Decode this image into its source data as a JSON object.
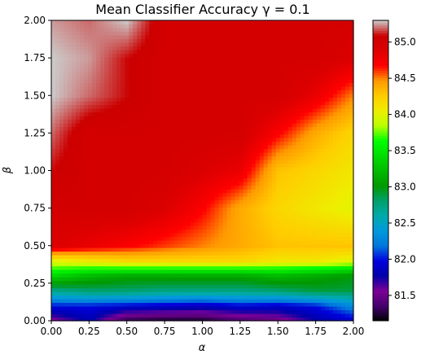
{
  "chart_data": {
    "type": "heatmap",
    "title": "Mean Classifier Accuracy γ = 0.1",
    "xlabel": "α",
    "ylabel": "β",
    "xlim": [
      0.0,
      2.0
    ],
    "ylim": [
      0.0,
      2.0
    ],
    "x_ticks": [
      "0.00",
      "0.25",
      "0.50",
      "0.75",
      "1.00",
      "1.25",
      "1.50",
      "1.75",
      "2.00"
    ],
    "y_ticks": [
      "0.00",
      "0.25",
      "0.50",
      "0.75",
      "1.00",
      "1.25",
      "1.50",
      "1.75",
      "2.00"
    ],
    "colorbar": {
      "colormap": "nipy_spectral",
      "range": [
        81.15,
        85.3
      ],
      "ticks": [
        "81.5",
        "82.0",
        "82.5",
        "83.0",
        "83.5",
        "84.0",
        "84.5",
        "85.0"
      ]
    },
    "x": [
      0.0,
      0.25,
      0.5,
      0.75,
      1.0,
      1.25,
      1.5,
      1.75,
      2.0
    ],
    "y": [
      0.0,
      0.1,
      0.2,
      0.3,
      0.4,
      0.5,
      0.75,
      1.0,
      1.25,
      1.5,
      1.75,
      2.0
    ],
    "z": [
      [
        81.5,
        81.8,
        81.25,
        81.2,
        81.2,
        81.35,
        81.45,
        81.75,
        81.9
      ],
      [
        82.0,
        82.0,
        81.95,
        81.9,
        81.85,
        81.95,
        81.9,
        82.0,
        82.3
      ],
      [
        82.7,
        82.8,
        82.8,
        82.75,
        82.75,
        82.75,
        82.8,
        82.9,
        82.9
      ],
      [
        83.4,
        83.2,
        83.1,
        83.1,
        83.1,
        83.1,
        83.2,
        83.1,
        83.0
      ],
      [
        84.0,
        84.1,
        84.2,
        84.2,
        84.2,
        84.2,
        84.1,
        84.1,
        84.0
      ],
      [
        84.9,
        84.8,
        84.7,
        84.6,
        84.5,
        84.4,
        84.3,
        84.3,
        84.3
      ],
      [
        85.0,
        85.0,
        85.0,
        84.9,
        84.7,
        84.4,
        84.2,
        84.1,
        84.0
      ],
      [
        85.1,
        85.0,
        85.0,
        85.0,
        84.9,
        84.8,
        84.3,
        84.2,
        84.1
      ],
      [
        85.2,
        85.0,
        85.0,
        85.0,
        85.0,
        85.0,
        84.7,
        84.4,
        84.2
      ],
      [
        85.3,
        85.2,
        85.1,
        85.0,
        85.0,
        85.0,
        85.0,
        84.8,
        84.5
      ],
      [
        85.3,
        85.25,
        85.1,
        85.0,
        85.0,
        85.0,
        85.0,
        85.0,
        84.9
      ],
      [
        85.25,
        85.2,
        85.3,
        85.0,
        85.0,
        85.0,
        85.0,
        85.0,
        85.0
      ]
    ]
  }
}
